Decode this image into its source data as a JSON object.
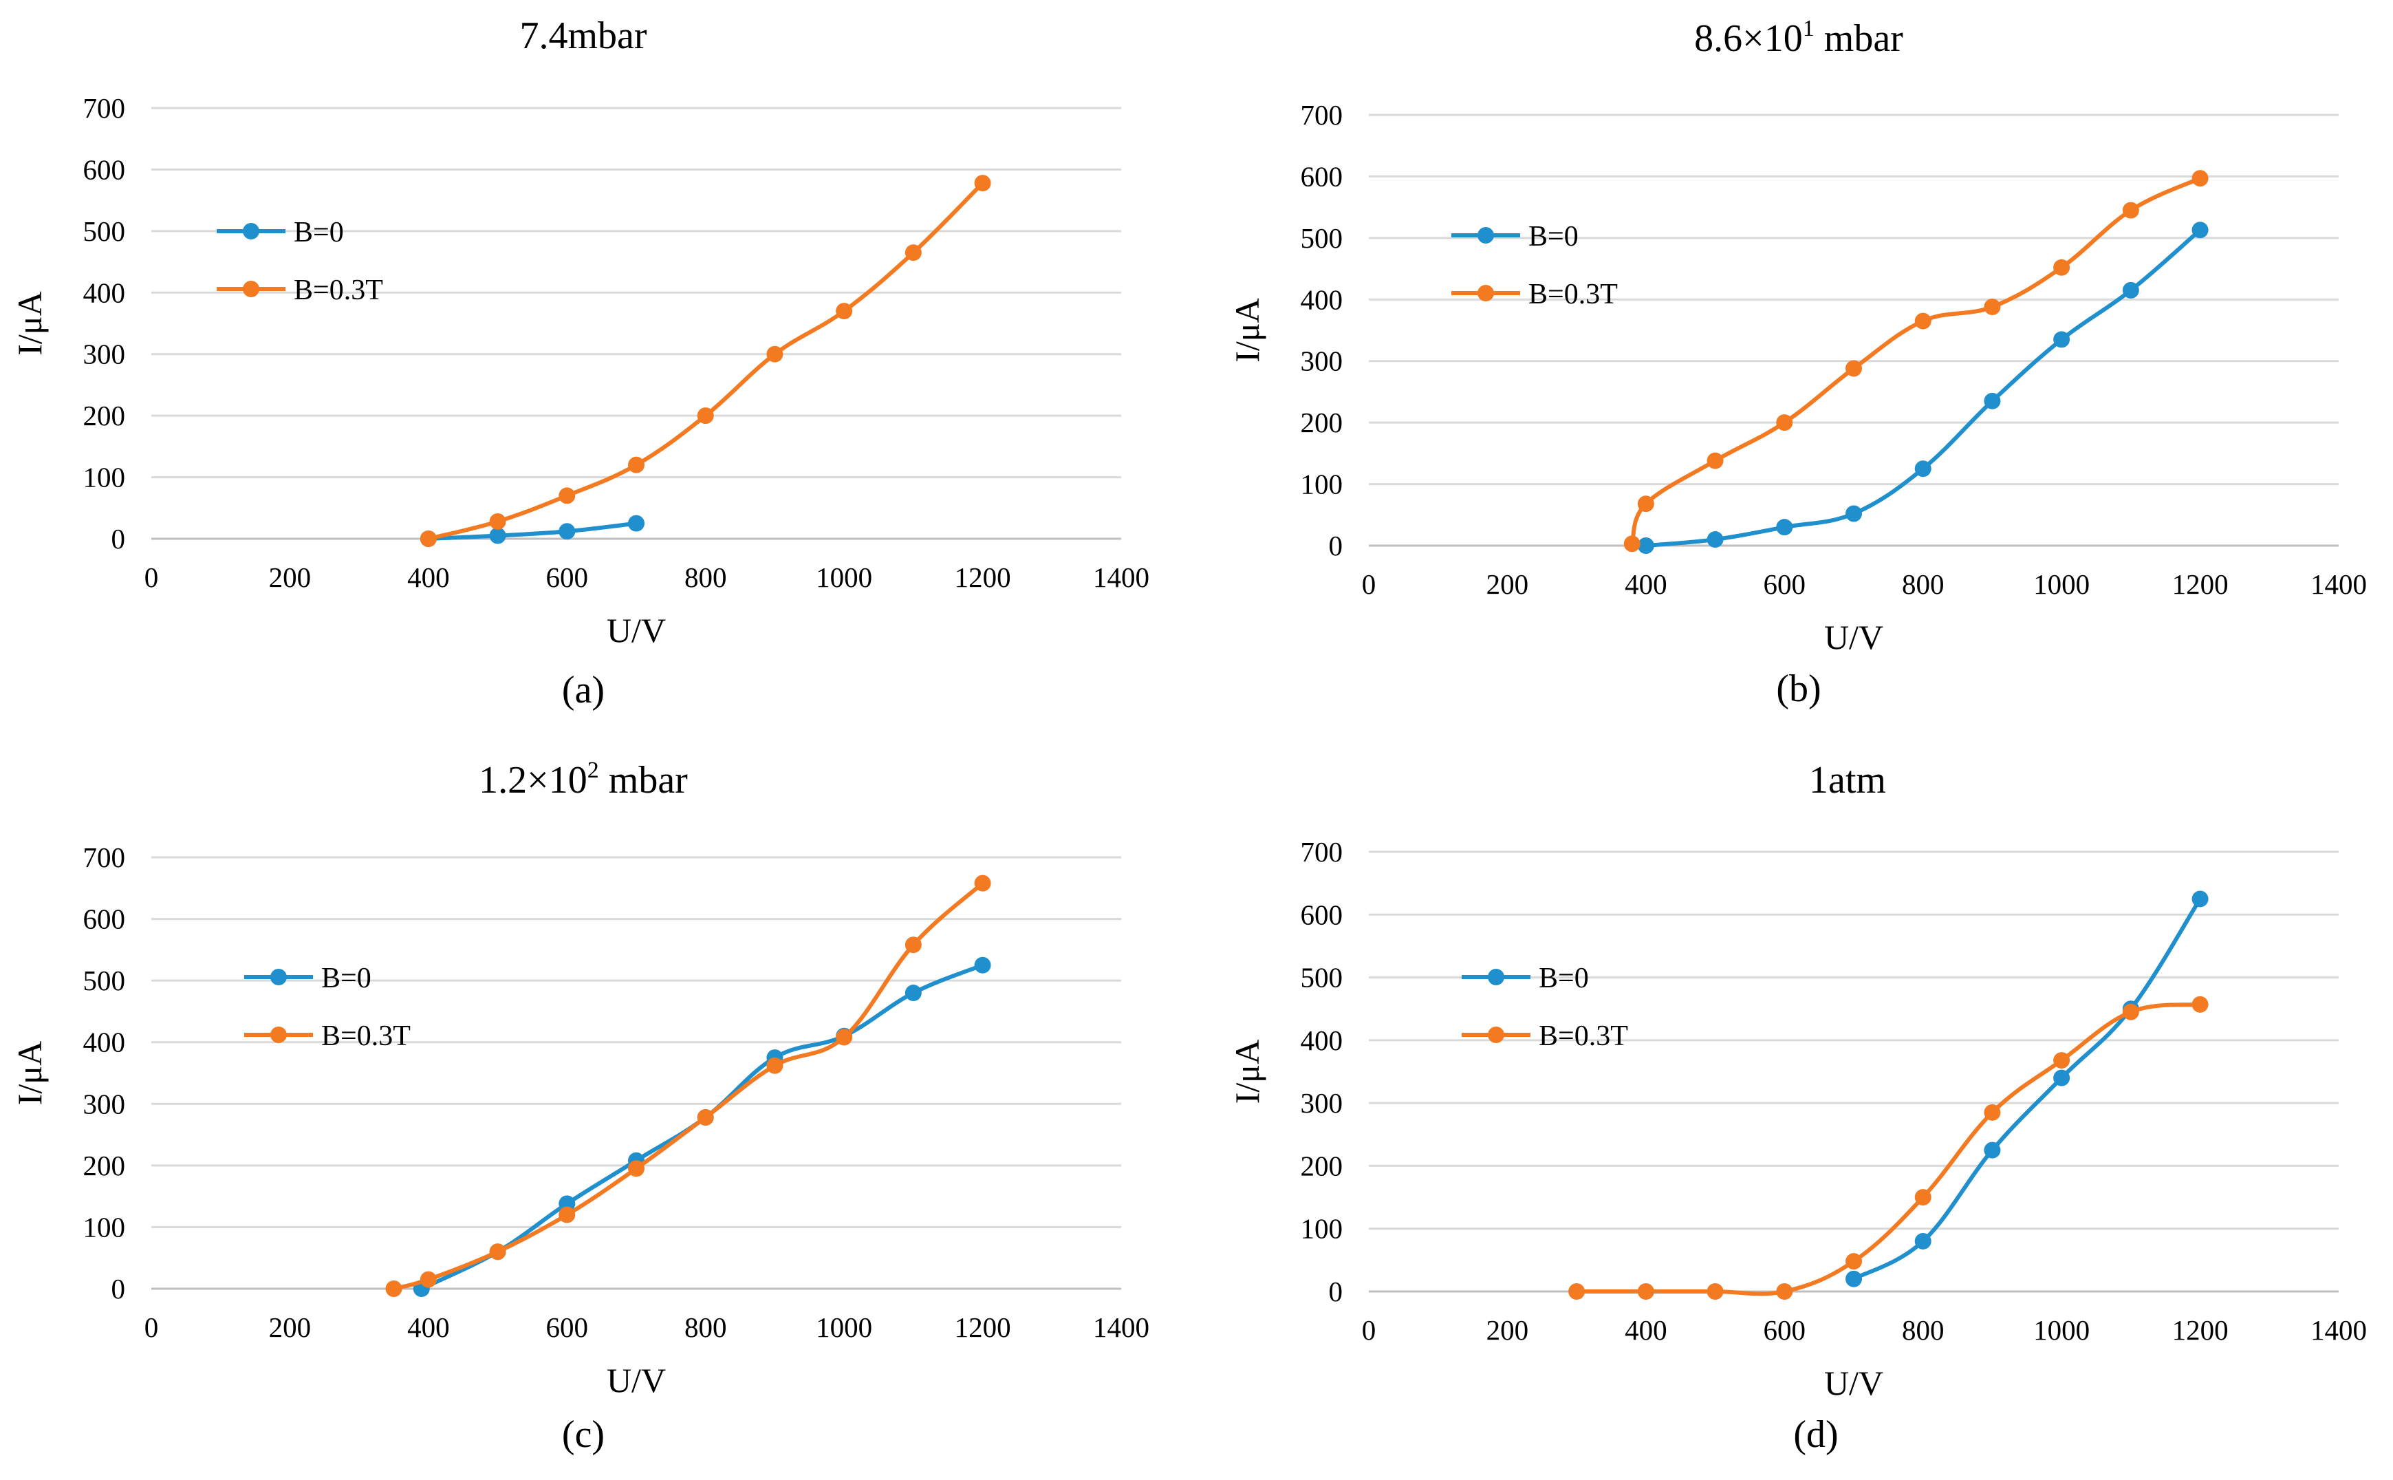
{
  "colors": {
    "b0": "#1f8fcd",
    "b03": "#f47a21"
  },
  "chart_data": [
    {
      "type": "scatter",
      "title": "7.4mbar",
      "title_parts": {
        "base": "",
        "sup": "",
        "tail": ""
      },
      "panel_label": "(a)",
      "xlabel": "U/V",
      "ylabel": "I/μA",
      "xlim": [
        0,
        1400
      ],
      "ylim": [
        0,
        700
      ],
      "xticks": [
        "0",
        "200",
        "400",
        "600",
        "800",
        "1000",
        "1200",
        "1400"
      ],
      "yticks": [
        "0",
        "100",
        "200",
        "300",
        "400",
        "500",
        "600",
        "700"
      ],
      "grid": "horizontal",
      "legend": "left",
      "smooth": true,
      "series": [
        {
          "name": "B=0",
          "color": "#1f8fcd",
          "x": [
            400,
            500,
            600,
            700
          ],
          "y": [
            0,
            5,
            12,
            25
          ]
        },
        {
          "name": "B=0.3T",
          "color": "#f47a21",
          "x": [
            400,
            500,
            600,
            700,
            800,
            900,
            1000,
            1100,
            1200
          ],
          "y": [
            0,
            28,
            70,
            120,
            200,
            300,
            370,
            465,
            578
          ]
        }
      ]
    },
    {
      "type": "scatter",
      "title": "8.6×10¹ mbar",
      "title_parts": {
        "base": "8.6×10",
        "sup": "1",
        "tail": " mbar"
      },
      "panel_label": "(b)",
      "xlabel": "U/V",
      "ylabel": "I/μA",
      "xlim": [
        0,
        1400
      ],
      "ylim": [
        0,
        700
      ],
      "xticks": [
        "0",
        "200",
        "400",
        "600",
        "800",
        "1000",
        "1200",
        "1400"
      ],
      "yticks": [
        "0",
        "100",
        "200",
        "300",
        "400",
        "500",
        "600",
        "700"
      ],
      "grid": "horizontal",
      "legend": "left",
      "smooth": true,
      "series": [
        {
          "name": "B=0",
          "color": "#1f8fcd",
          "x": [
            400,
            500,
            600,
            700,
            800,
            900,
            1000,
            1100,
            1200
          ],
          "y": [
            0,
            10,
            30,
            52,
            125,
            235,
            335,
            415,
            513
          ]
        },
        {
          "name": "B=0.3T",
          "color": "#f47a21",
          "x": [
            380,
            400,
            500,
            600,
            700,
            800,
            900,
            1000,
            1100,
            1200
          ],
          "y": [
            3,
            68,
            138,
            200,
            288,
            365,
            388,
            452,
            545,
            597
          ]
        }
      ]
    },
    {
      "type": "scatter",
      "title": "1.2×10² mbar",
      "title_parts": {
        "base": "1.2×10",
        "sup": "2",
        "tail": " mbar"
      },
      "panel_label": "(c)",
      "xlabel": "U/V",
      "ylabel": "I/μA",
      "xlim": [
        0,
        1400
      ],
      "ylim": [
        0,
        700
      ],
      "xticks": [
        "0",
        "200",
        "400",
        "600",
        "800",
        "1000",
        "1200",
        "1400"
      ],
      "yticks": [
        "0",
        "100",
        "200",
        "300",
        "400",
        "500",
        "600",
        "700"
      ],
      "grid": "horizontal",
      "legend": "left",
      "smooth": true,
      "series": [
        {
          "name": "B=0",
          "color": "#1f8fcd",
          "x": [
            390,
            500,
            600,
            700,
            800,
            900,
            1000,
            1100,
            1200
          ],
          "y": [
            0,
            60,
            138,
            208,
            278,
            375,
            410,
            480,
            525
          ]
        },
        {
          "name": "B=0.3T",
          "color": "#f47a21",
          "x": [
            350,
            400,
            500,
            600,
            700,
            800,
            900,
            1000,
            1100,
            1200
          ],
          "y": [
            0,
            15,
            60,
            120,
            195,
            278,
            362,
            408,
            558,
            658
          ]
        }
      ]
    },
    {
      "type": "scatter",
      "title": "1atm",
      "title_parts": {
        "base": "",
        "sup": "",
        "tail": ""
      },
      "panel_label": "(d)",
      "xlabel": "U/V",
      "ylabel": "I/μA",
      "xlim": [
        0,
        1400
      ],
      "ylim": [
        0,
        700
      ],
      "xticks": [
        "0",
        "200",
        "400",
        "600",
        "800",
        "1000",
        "1200",
        "1400"
      ],
      "yticks": [
        "0",
        "100",
        "200",
        "300",
        "400",
        "500",
        "600",
        "700"
      ],
      "grid": "horizontal",
      "legend": "left",
      "smooth": true,
      "series": [
        {
          "name": "B=0",
          "color": "#1f8fcd",
          "x": [
            700,
            800,
            900,
            1000,
            1100,
            1200
          ],
          "y": [
            20,
            80,
            225,
            340,
            450,
            625
          ]
        },
        {
          "name": "B=0.3T",
          "color": "#f47a21",
          "x": [
            300,
            400,
            500,
            600,
            700,
            800,
            900,
            1000,
            1100,
            1200
          ],
          "y": [
            0,
            0,
            0,
            0,
            48,
            150,
            285,
            368,
            445,
            457
          ]
        }
      ]
    }
  ]
}
